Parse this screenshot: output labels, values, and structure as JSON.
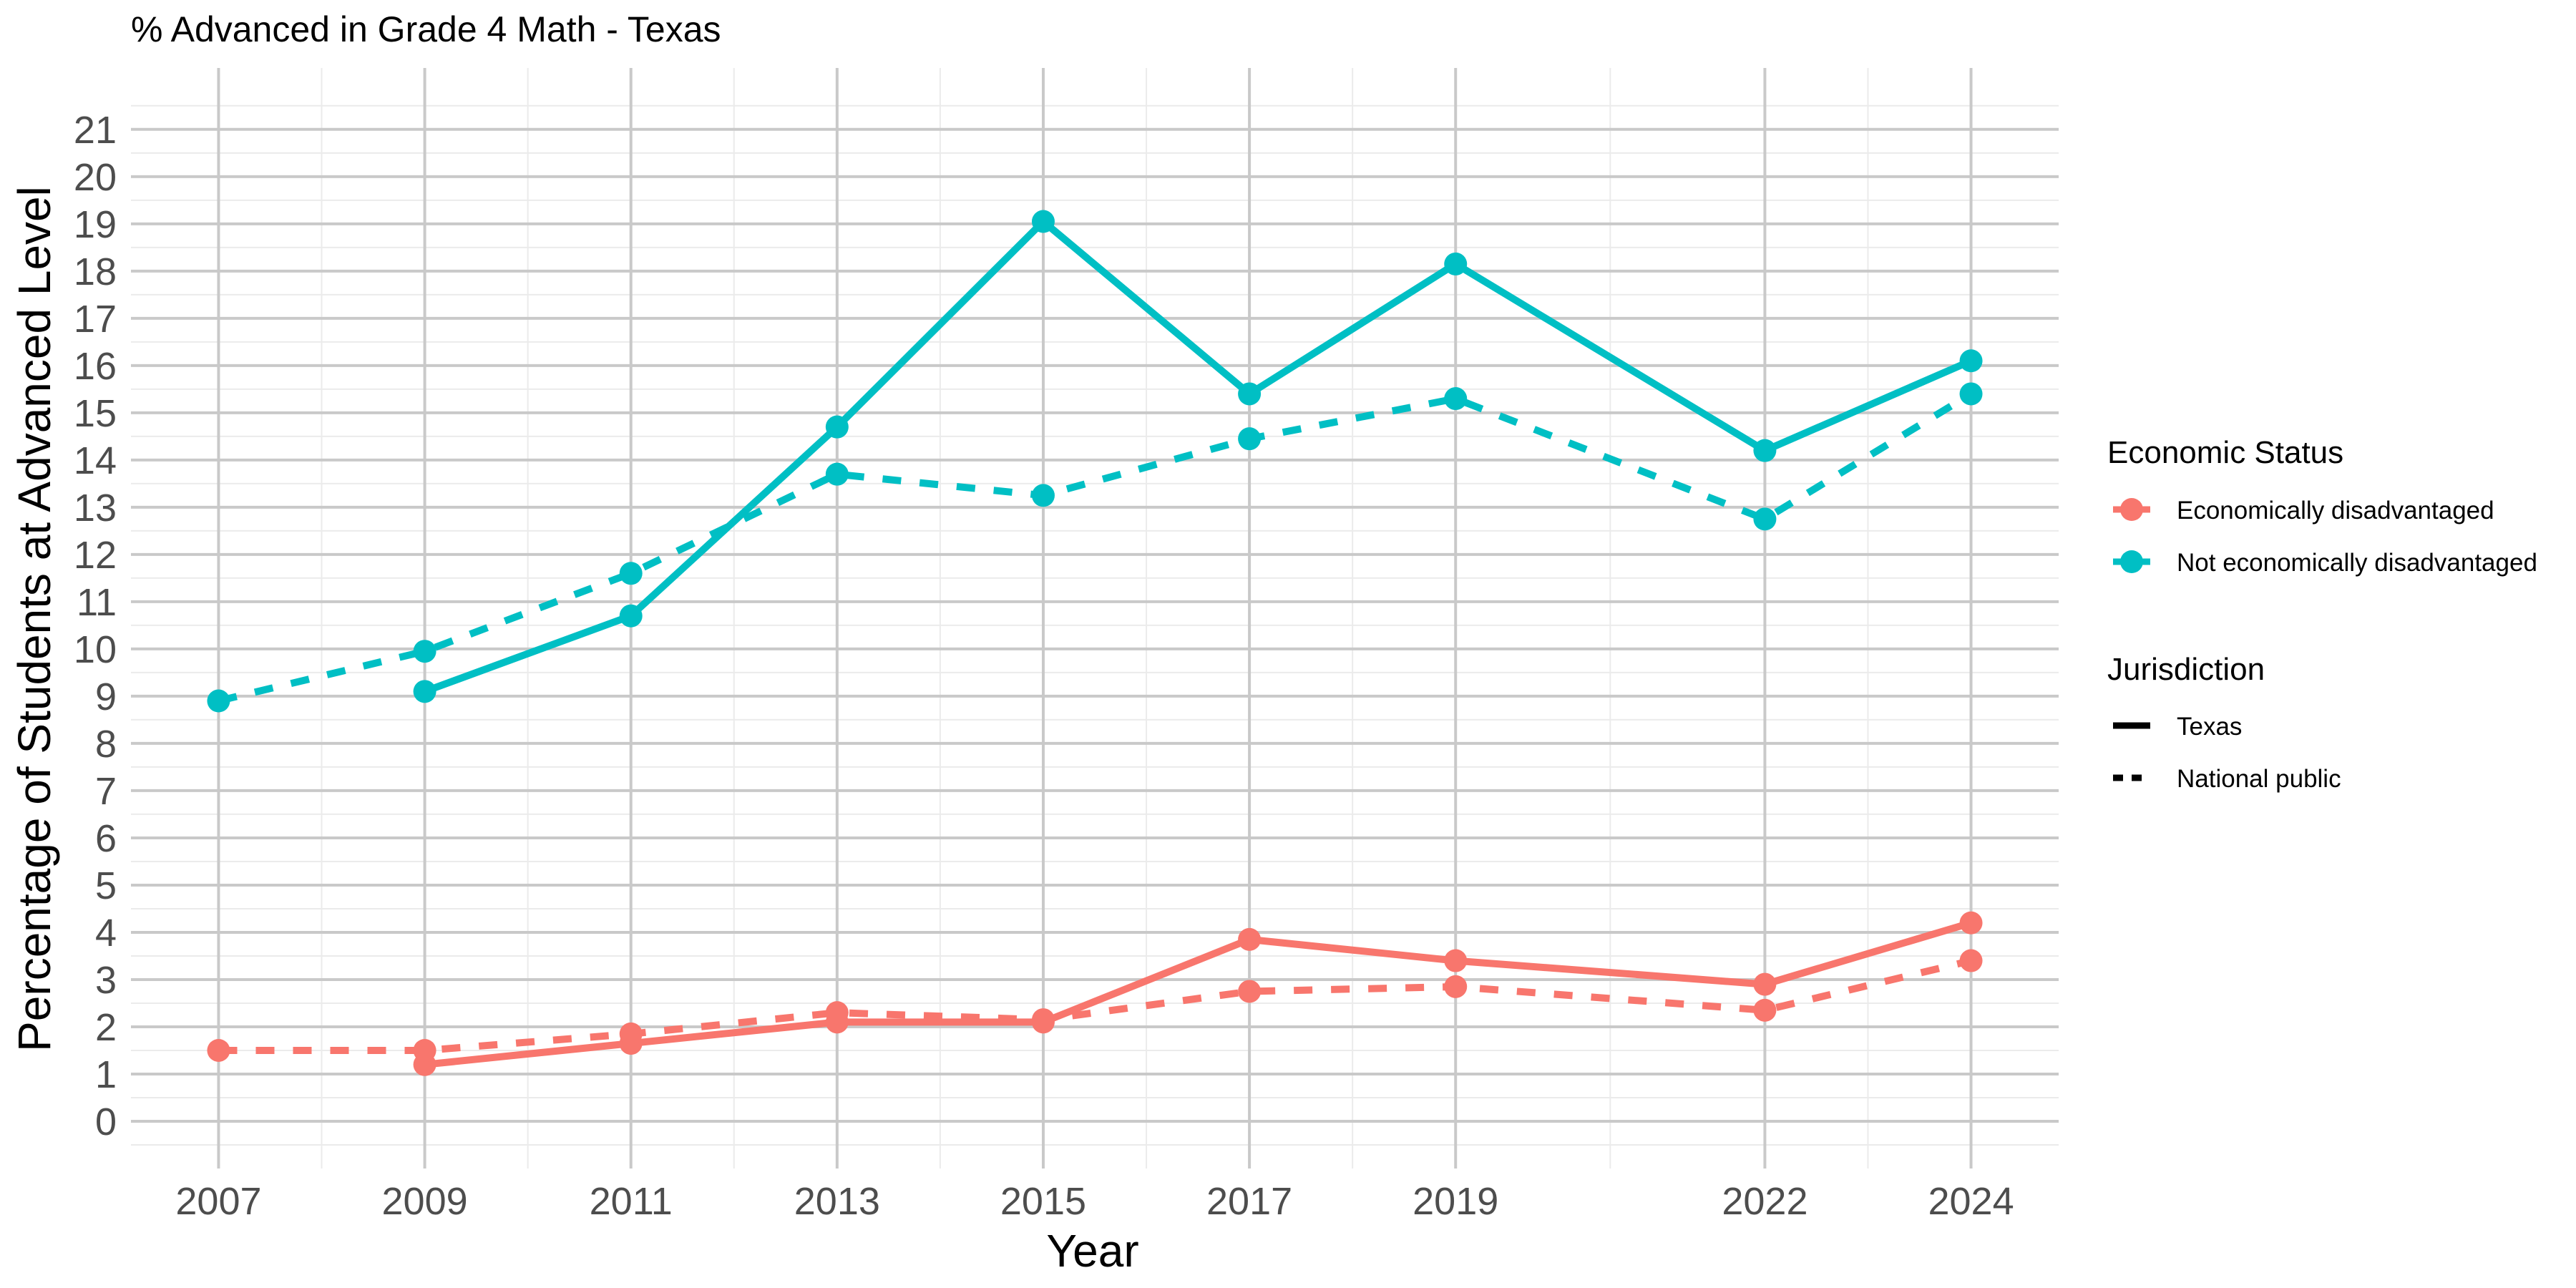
{
  "chart_data": {
    "type": "line",
    "title": "% Advanced in Grade 4 Math - Texas",
    "xlabel": "Year",
    "ylabel": "Percentage of Students at Advanced Level",
    "x_ticks": [
      2007,
      2009,
      2011,
      2013,
      2015,
      2017,
      2019,
      2022,
      2024
    ],
    "y_ticks": [
      0,
      1,
      2,
      3,
      4,
      5,
      6,
      7,
      8,
      9,
      10,
      11,
      12,
      13,
      14,
      15,
      16,
      17,
      18,
      19,
      20,
      21
    ],
    "xlim": [
      2006.15,
      2024.85
    ],
    "ylim": [
      -1,
      22.3
    ],
    "grid": true,
    "legend_position": "right",
    "color_legend": {
      "title": "Economic Status",
      "entries": [
        {
          "label": "Economically disadvantaged",
          "color": "#F8766D"
        },
        {
          "label": "Not economically disadvantaged",
          "color": "#00BFC4"
        }
      ]
    },
    "linetype_legend": {
      "title": "Jurisdiction",
      "entries": [
        {
          "label": "Texas",
          "linetype": "solid"
        },
        {
          "label": "National public",
          "linetype": "dashed"
        }
      ]
    },
    "series": [
      {
        "economic_status": "Not economically disadvantaged",
        "jurisdiction": "Texas",
        "color": "#00BFC4",
        "linetype": "solid",
        "points": [
          {
            "x": 2009,
            "y": 9.1
          },
          {
            "x": 2011,
            "y": 10.7
          },
          {
            "x": 2013,
            "y": 14.7
          },
          {
            "x": 2015,
            "y": 19.05
          },
          {
            "x": 2017,
            "y": 15.4
          },
          {
            "x": 2019,
            "y": 18.15
          },
          {
            "x": 2022,
            "y": 14.2
          },
          {
            "x": 2024,
            "y": 16.1
          }
        ]
      },
      {
        "economic_status": "Not economically disadvantaged",
        "jurisdiction": "National public",
        "color": "#00BFC4",
        "linetype": "dashed",
        "points": [
          {
            "x": 2007,
            "y": 8.9
          },
          {
            "x": 2009,
            "y": 9.95
          },
          {
            "x": 2011,
            "y": 11.6
          },
          {
            "x": 2013,
            "y": 13.7
          },
          {
            "x": 2015,
            "y": 13.25
          },
          {
            "x": 2017,
            "y": 14.45
          },
          {
            "x": 2019,
            "y": 15.3
          },
          {
            "x": 2022,
            "y": 12.75
          },
          {
            "x": 2024,
            "y": 15.4
          }
        ]
      },
      {
        "economic_status": "Economically disadvantaged",
        "jurisdiction": "Texas",
        "color": "#F8766D",
        "linetype": "solid",
        "points": [
          {
            "x": 2009,
            "y": 1.2
          },
          {
            "x": 2011,
            "y": 1.65
          },
          {
            "x": 2013,
            "y": 2.1
          },
          {
            "x": 2015,
            "y": 2.1
          },
          {
            "x": 2017,
            "y": 3.85
          },
          {
            "x": 2019,
            "y": 3.4
          },
          {
            "x": 2022,
            "y": 2.9
          },
          {
            "x": 2024,
            "y": 4.2
          }
        ]
      },
      {
        "economic_status": "Economically disadvantaged",
        "jurisdiction": "National public",
        "color": "#F8766D",
        "linetype": "dashed",
        "points": [
          {
            "x": 2007,
            "y": 1.5
          },
          {
            "x": 2009,
            "y": 1.5
          },
          {
            "x": 2011,
            "y": 1.85
          },
          {
            "x": 2013,
            "y": 2.3
          },
          {
            "x": 2015,
            "y": 2.15
          },
          {
            "x": 2017,
            "y": 2.75
          },
          {
            "x": 2019,
            "y": 2.85
          },
          {
            "x": 2022,
            "y": 2.35
          },
          {
            "x": 2024,
            "y": 3.4
          }
        ]
      }
    ]
  }
}
